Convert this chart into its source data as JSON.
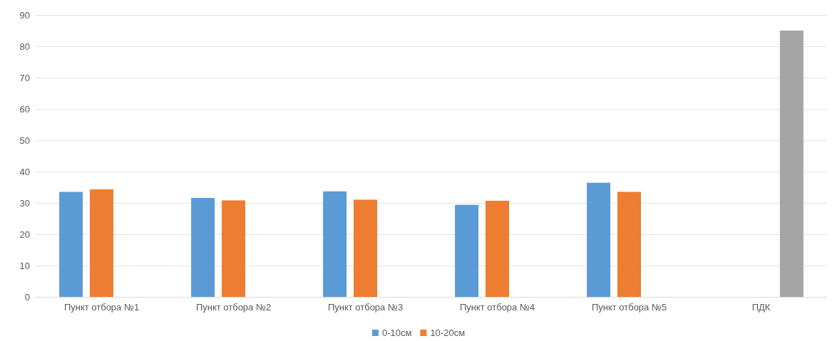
{
  "chart_data": {
    "type": "bar",
    "categories": [
      "Пункт отбора №1",
      "Пункт отбора №2",
      "Пункт отбора №3",
      "Пункт отбора №4",
      "Пункт отбора №5",
      "ПДК"
    ],
    "series": [
      {
        "name": "0-10см",
        "color": "#5b9bd5",
        "values": [
          33.5,
          31.6,
          33.7,
          29.4,
          36.4,
          null
        ]
      },
      {
        "name": "10-20см",
        "color": "#ed7d31",
        "values": [
          34.3,
          30.8,
          31.0,
          30.7,
          33.5,
          null
        ]
      },
      {
        "color": "#a5a5a5",
        "values": [
          null,
          null,
          null,
          null,
          null,
          85
        ]
      }
    ],
    "ylim": [
      0,
      90
    ],
    "yticks": [
      0,
      10,
      20,
      30,
      40,
      50,
      60,
      70,
      80,
      90
    ],
    "grid": "y",
    "legend": "bottom"
  }
}
